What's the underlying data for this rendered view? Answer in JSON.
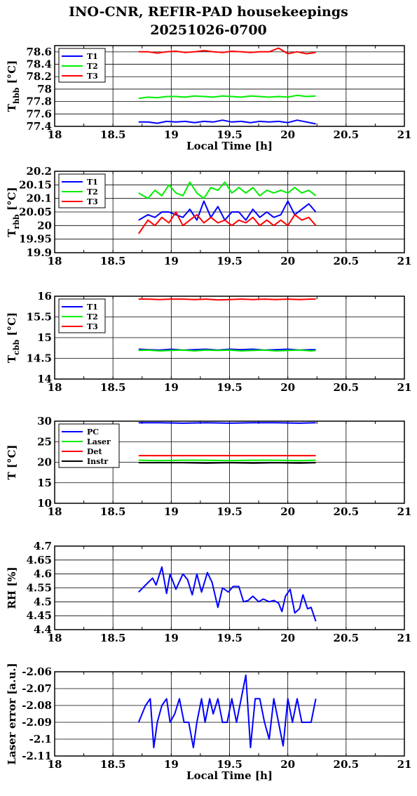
{
  "title_line1": "INO-CNR, REFIR-PAD housekeepings",
  "title_line2": "20251026-0700",
  "chart_data": [
    {
      "id": "hbb",
      "type": "line",
      "ylabel": "T",
      "ylabel_sub": "hbb",
      "ylabel_unit": "[°C]",
      "xlabel": "Local Time [h]",
      "xlim": [
        18,
        21
      ],
      "ylim": [
        77.4,
        78.7
      ],
      "xticks": [
        18,
        18.5,
        19,
        19.5,
        20,
        20.5,
        21
      ],
      "xtick_labels": [
        "18",
        "18.5",
        "19",
        "19.5",
        "20",
        "20.5",
        "21"
      ],
      "yticks": [
        77.4,
        77.6,
        77.8,
        78,
        78.2,
        78.4,
        78.6
      ],
      "ytick_labels": [
        "77.4",
        "77.6",
        "77.8",
        "78",
        "78.2",
        "78.4",
        "78.6"
      ],
      "grid": true,
      "legend": "top-left",
      "x": [
        18.72,
        18.8,
        18.88,
        18.96,
        19.04,
        19.12,
        19.2,
        19.28,
        19.36,
        19.44,
        19.52,
        19.6,
        19.68,
        19.76,
        19.84,
        19.92,
        20.0,
        20.08,
        20.16,
        20.24
      ],
      "series": [
        {
          "name": "T1",
          "color": "#0000ff",
          "values": [
            77.47,
            77.47,
            77.45,
            77.48,
            77.47,
            77.48,
            77.46,
            77.48,
            77.47,
            77.5,
            77.47,
            77.48,
            77.46,
            77.48,
            77.47,
            77.48,
            77.46,
            77.5,
            77.47,
            77.44
          ]
        },
        {
          "name": "T2",
          "color": "#00ee00",
          "values": [
            77.85,
            77.87,
            77.86,
            77.88,
            77.88,
            77.87,
            77.89,
            77.88,
            77.87,
            77.89,
            77.88,
            77.87,
            77.89,
            77.88,
            77.87,
            77.88,
            77.87,
            77.9,
            77.88,
            77.89
          ]
        },
        {
          "name": "T3",
          "color": "#ff0000",
          "values": [
            78.6,
            78.6,
            78.58,
            78.6,
            78.61,
            78.59,
            78.6,
            78.62,
            78.6,
            78.59,
            78.61,
            78.6,
            78.59,
            78.6,
            78.6,
            78.66,
            78.57,
            78.6,
            78.57,
            78.59
          ]
        }
      ]
    },
    {
      "id": "rbb",
      "type": "line",
      "ylabel": "T",
      "ylabel_sub": "rbb",
      "ylabel_unit": "[°C]",
      "xlabel": "",
      "xlim": [
        18,
        21
      ],
      "ylim": [
        19.9,
        20.2
      ],
      "xticks": [
        18,
        18.5,
        19,
        19.5,
        20,
        20.5,
        21
      ],
      "xtick_labels": [
        "18",
        "18.5",
        "19",
        "19.5",
        "20",
        "20.5",
        "21"
      ],
      "yticks": [
        19.9,
        19.95,
        20,
        20.05,
        20.1,
        20.15,
        20.2
      ],
      "ytick_labels": [
        "19.9",
        "19.95",
        "20",
        "20.05",
        "20.1",
        "20.15",
        "20.2"
      ],
      "grid": true,
      "legend": "top-left",
      "x": [
        18.72,
        18.8,
        18.86,
        18.92,
        18.98,
        19.04,
        19.1,
        19.16,
        19.22,
        19.28,
        19.34,
        19.4,
        19.46,
        19.52,
        19.58,
        19.64,
        19.7,
        19.76,
        19.82,
        19.88,
        19.94,
        20.0,
        20.06,
        20.12,
        20.18,
        20.24
      ],
      "series": [
        {
          "name": "T1",
          "color": "#0000ff",
          "values": [
            20.02,
            20.04,
            20.03,
            20.05,
            20.05,
            20.04,
            20.03,
            20.06,
            20.02,
            20.09,
            20.03,
            20.07,
            20.02,
            20.05,
            20.05,
            20.02,
            20.06,
            20.03,
            20.05,
            20.03,
            20.04,
            20.09,
            20.04,
            20.06,
            20.08,
            20.05
          ]
        },
        {
          "name": "T2",
          "color": "#00ee00",
          "values": [
            20.12,
            20.1,
            20.13,
            20.11,
            20.15,
            20.12,
            20.11,
            20.16,
            20.12,
            20.1,
            20.14,
            20.13,
            20.16,
            20.12,
            20.14,
            20.12,
            20.14,
            20.11,
            20.13,
            20.12,
            20.13,
            20.12,
            20.14,
            20.12,
            20.13,
            20.11
          ]
        },
        {
          "name": "T3",
          "color": "#ff0000",
          "values": [
            19.97,
            20.02,
            20.0,
            20.03,
            20.01,
            20.05,
            20.0,
            20.02,
            20.04,
            20.01,
            20.03,
            20.01,
            20.02,
            20.0,
            20.02,
            20.01,
            20.03,
            20.0,
            20.02,
            20.0,
            20.02,
            20.0,
            20.04,
            20.02,
            20.03,
            20.0
          ]
        }
      ]
    },
    {
      "id": "cbb",
      "type": "line",
      "ylabel": "T",
      "ylabel_sub": "cbb",
      "ylabel_unit": "[°C]",
      "xlabel": "",
      "xlim": [
        18,
        21
      ],
      "ylim": [
        14,
        16
      ],
      "xticks": [
        18,
        18.5,
        19,
        19.5,
        20,
        20.5,
        21
      ],
      "xtick_labels": [
        "18",
        "18.5",
        "19",
        "19.5",
        "20",
        "20.5",
        "21"
      ],
      "yticks": [
        14,
        14.5,
        15,
        15.5,
        16
      ],
      "ytick_labels": [
        "14",
        "14.5",
        "15",
        "15.5",
        "16"
      ],
      "grid": true,
      "legend": "top-left",
      "x": [
        18.72,
        18.8,
        18.9,
        19.0,
        19.1,
        19.2,
        19.3,
        19.4,
        19.5,
        19.6,
        19.7,
        19.8,
        19.9,
        20.0,
        20.1,
        20.2,
        20.24
      ],
      "series": [
        {
          "name": "T1",
          "color": "#0000ff",
          "values": [
            14.72,
            14.71,
            14.7,
            14.72,
            14.7,
            14.71,
            14.72,
            14.7,
            14.72,
            14.71,
            14.72,
            14.7,
            14.71,
            14.72,
            14.7,
            14.71,
            14.71
          ]
        },
        {
          "name": "T2",
          "color": "#00ee00",
          "values": [
            14.69,
            14.7,
            14.68,
            14.69,
            14.7,
            14.68,
            14.7,
            14.69,
            14.7,
            14.68,
            14.69,
            14.7,
            14.68,
            14.69,
            14.7,
            14.68,
            14.69
          ]
        },
        {
          "name": "T3",
          "color": "#ff0000",
          "values": [
            15.93,
            15.93,
            15.92,
            15.93,
            15.93,
            15.92,
            15.93,
            15.91,
            15.92,
            15.93,
            15.92,
            15.93,
            15.92,
            15.93,
            15.92,
            15.93,
            15.93
          ]
        }
      ]
    },
    {
      "id": "temps",
      "type": "line",
      "ylabel": "T [°C]",
      "ylabel_sub": "",
      "ylabel_unit": "",
      "xlabel": "",
      "xlim": [
        18,
        21
      ],
      "ylim": [
        10,
        30
      ],
      "xticks": [
        18,
        18.5,
        19,
        19.5,
        20,
        20.5,
        21
      ],
      "xtick_labels": [
        "18",
        "18.5",
        "19",
        "19.5",
        "20",
        "20.5",
        "21"
      ],
      "yticks": [
        10,
        15,
        20,
        25,
        30
      ],
      "ytick_labels": [
        "10",
        "15",
        "20",
        "25",
        "30"
      ],
      "grid": true,
      "legend": "top-left",
      "x": [
        18.72,
        18.9,
        19.1,
        19.3,
        19.5,
        19.7,
        19.9,
        20.1,
        20.24
      ],
      "series": [
        {
          "name": "PC",
          "color": "#0000ff",
          "values": [
            29.6,
            29.6,
            29.5,
            29.6,
            29.5,
            29.6,
            29.6,
            29.5,
            29.6
          ]
        },
        {
          "name": "Laser",
          "color": "#00ee00",
          "values": [
            20.5,
            20.4,
            20.5,
            20.5,
            20.4,
            20.5,
            20.5,
            20.4,
            20.5
          ]
        },
        {
          "name": "Det",
          "color": "#ff0000",
          "values": [
            21.6,
            21.6,
            21.6,
            21.6,
            21.6,
            21.6,
            21.6,
            21.6,
            21.6
          ]
        },
        {
          "name": "Instr",
          "color": "#000000",
          "values": [
            19.9,
            19.9,
            19.9,
            19.8,
            19.9,
            19.8,
            19.9,
            19.8,
            19.9
          ]
        }
      ]
    },
    {
      "id": "rh",
      "type": "line",
      "ylabel": "RH [%]",
      "ylabel_sub": "",
      "ylabel_unit": "",
      "xlabel": "",
      "xlim": [
        18,
        21
      ],
      "ylim": [
        4.4,
        4.7
      ],
      "xticks": [
        18,
        18.5,
        19,
        19.5,
        20,
        20.5,
        21
      ],
      "xtick_labels": [
        "18",
        "18.5",
        "19",
        "19.5",
        "20",
        "20.5",
        "21"
      ],
      "yticks": [
        4.4,
        4.45,
        4.5,
        4.55,
        4.6,
        4.65,
        4.7
      ],
      "ytick_labels": [
        "4.4",
        "4.45",
        "4.5",
        "4.55",
        "4.6",
        "4.65",
        "4.7"
      ],
      "grid": true,
      "legend": "",
      "x": [
        18.72,
        18.78,
        18.84,
        18.87,
        18.92,
        18.96,
        18.99,
        19.04,
        19.1,
        19.14,
        19.18,
        19.22,
        19.26,
        19.31,
        19.35,
        19.4,
        19.44,
        19.49,
        19.53,
        19.58,
        19.62,
        19.66,
        19.7,
        19.75,
        19.79,
        19.84,
        19.88,
        19.92,
        19.95,
        19.98,
        20.02,
        20.06,
        20.1,
        20.13,
        20.17,
        20.2,
        20.24
      ],
      "series": [
        {
          "name": "",
          "color": "#0000ff",
          "values": [
            4.535,
            4.56,
            4.585,
            4.56,
            4.625,
            4.53,
            4.6,
            4.545,
            4.6,
            4.58,
            4.525,
            4.6,
            4.535,
            4.605,
            4.57,
            4.48,
            4.55,
            4.535,
            4.555,
            4.555,
            4.5,
            4.505,
            4.52,
            4.5,
            4.51,
            4.5,
            4.505,
            4.495,
            4.465,
            4.52,
            4.545,
            4.46,
            4.475,
            4.525,
            4.475,
            4.48,
            4.43
          ]
        }
      ]
    },
    {
      "id": "laser",
      "type": "line",
      "ylabel": "Laser error [a.u.]",
      "ylabel_sub": "",
      "ylabel_unit": "",
      "xlabel": "Local Time [h]",
      "xlim": [
        18,
        21
      ],
      "ylim": [
        -2.11,
        -2.06
      ],
      "xticks": [
        18,
        18.5,
        19,
        19.5,
        20,
        20.5,
        21
      ],
      "xtick_labels": [
        "18",
        "18.5",
        "19",
        "19.5",
        "20",
        "20.5",
        "21"
      ],
      "yticks": [
        -2.11,
        -2.1,
        -2.09,
        -2.08,
        -2.07,
        -2.06
      ],
      "ytick_labels": [
        "-2.11",
        "-2.1",
        "-2.09",
        "-2.08",
        "-2.07",
        "-2.06"
      ],
      "grid": true,
      "legend": "",
      "x": [
        18.72,
        18.78,
        18.82,
        18.85,
        18.88,
        18.92,
        18.96,
        18.99,
        19.03,
        19.07,
        19.11,
        19.15,
        19.19,
        19.22,
        19.26,
        19.29,
        19.33,
        19.36,
        19.4,
        19.44,
        19.48,
        19.52,
        19.56,
        19.6,
        19.64,
        19.68,
        19.72,
        19.76,
        19.8,
        19.84,
        19.88,
        19.92,
        19.96,
        20.0,
        20.04,
        20.08,
        20.12,
        20.16,
        20.2,
        20.24
      ],
      "series": [
        {
          "name": "",
          "color": "#0000ff",
          "values": [
            -2.09,
            -2.08,
            -2.076,
            -2.105,
            -2.09,
            -2.08,
            -2.076,
            -2.09,
            -2.085,
            -2.076,
            -2.09,
            -2.09,
            -2.105,
            -2.09,
            -2.076,
            -2.09,
            -2.076,
            -2.085,
            -2.076,
            -2.09,
            -2.09,
            -2.076,
            -2.09,
            -2.076,
            -2.062,
            -2.105,
            -2.076,
            -2.076,
            -2.09,
            -2.1,
            -2.076,
            -2.09,
            -2.104,
            -2.076,
            -2.09,
            -2.076,
            -2.09,
            -2.09,
            -2.09,
            -2.076
          ]
        }
      ]
    }
  ]
}
